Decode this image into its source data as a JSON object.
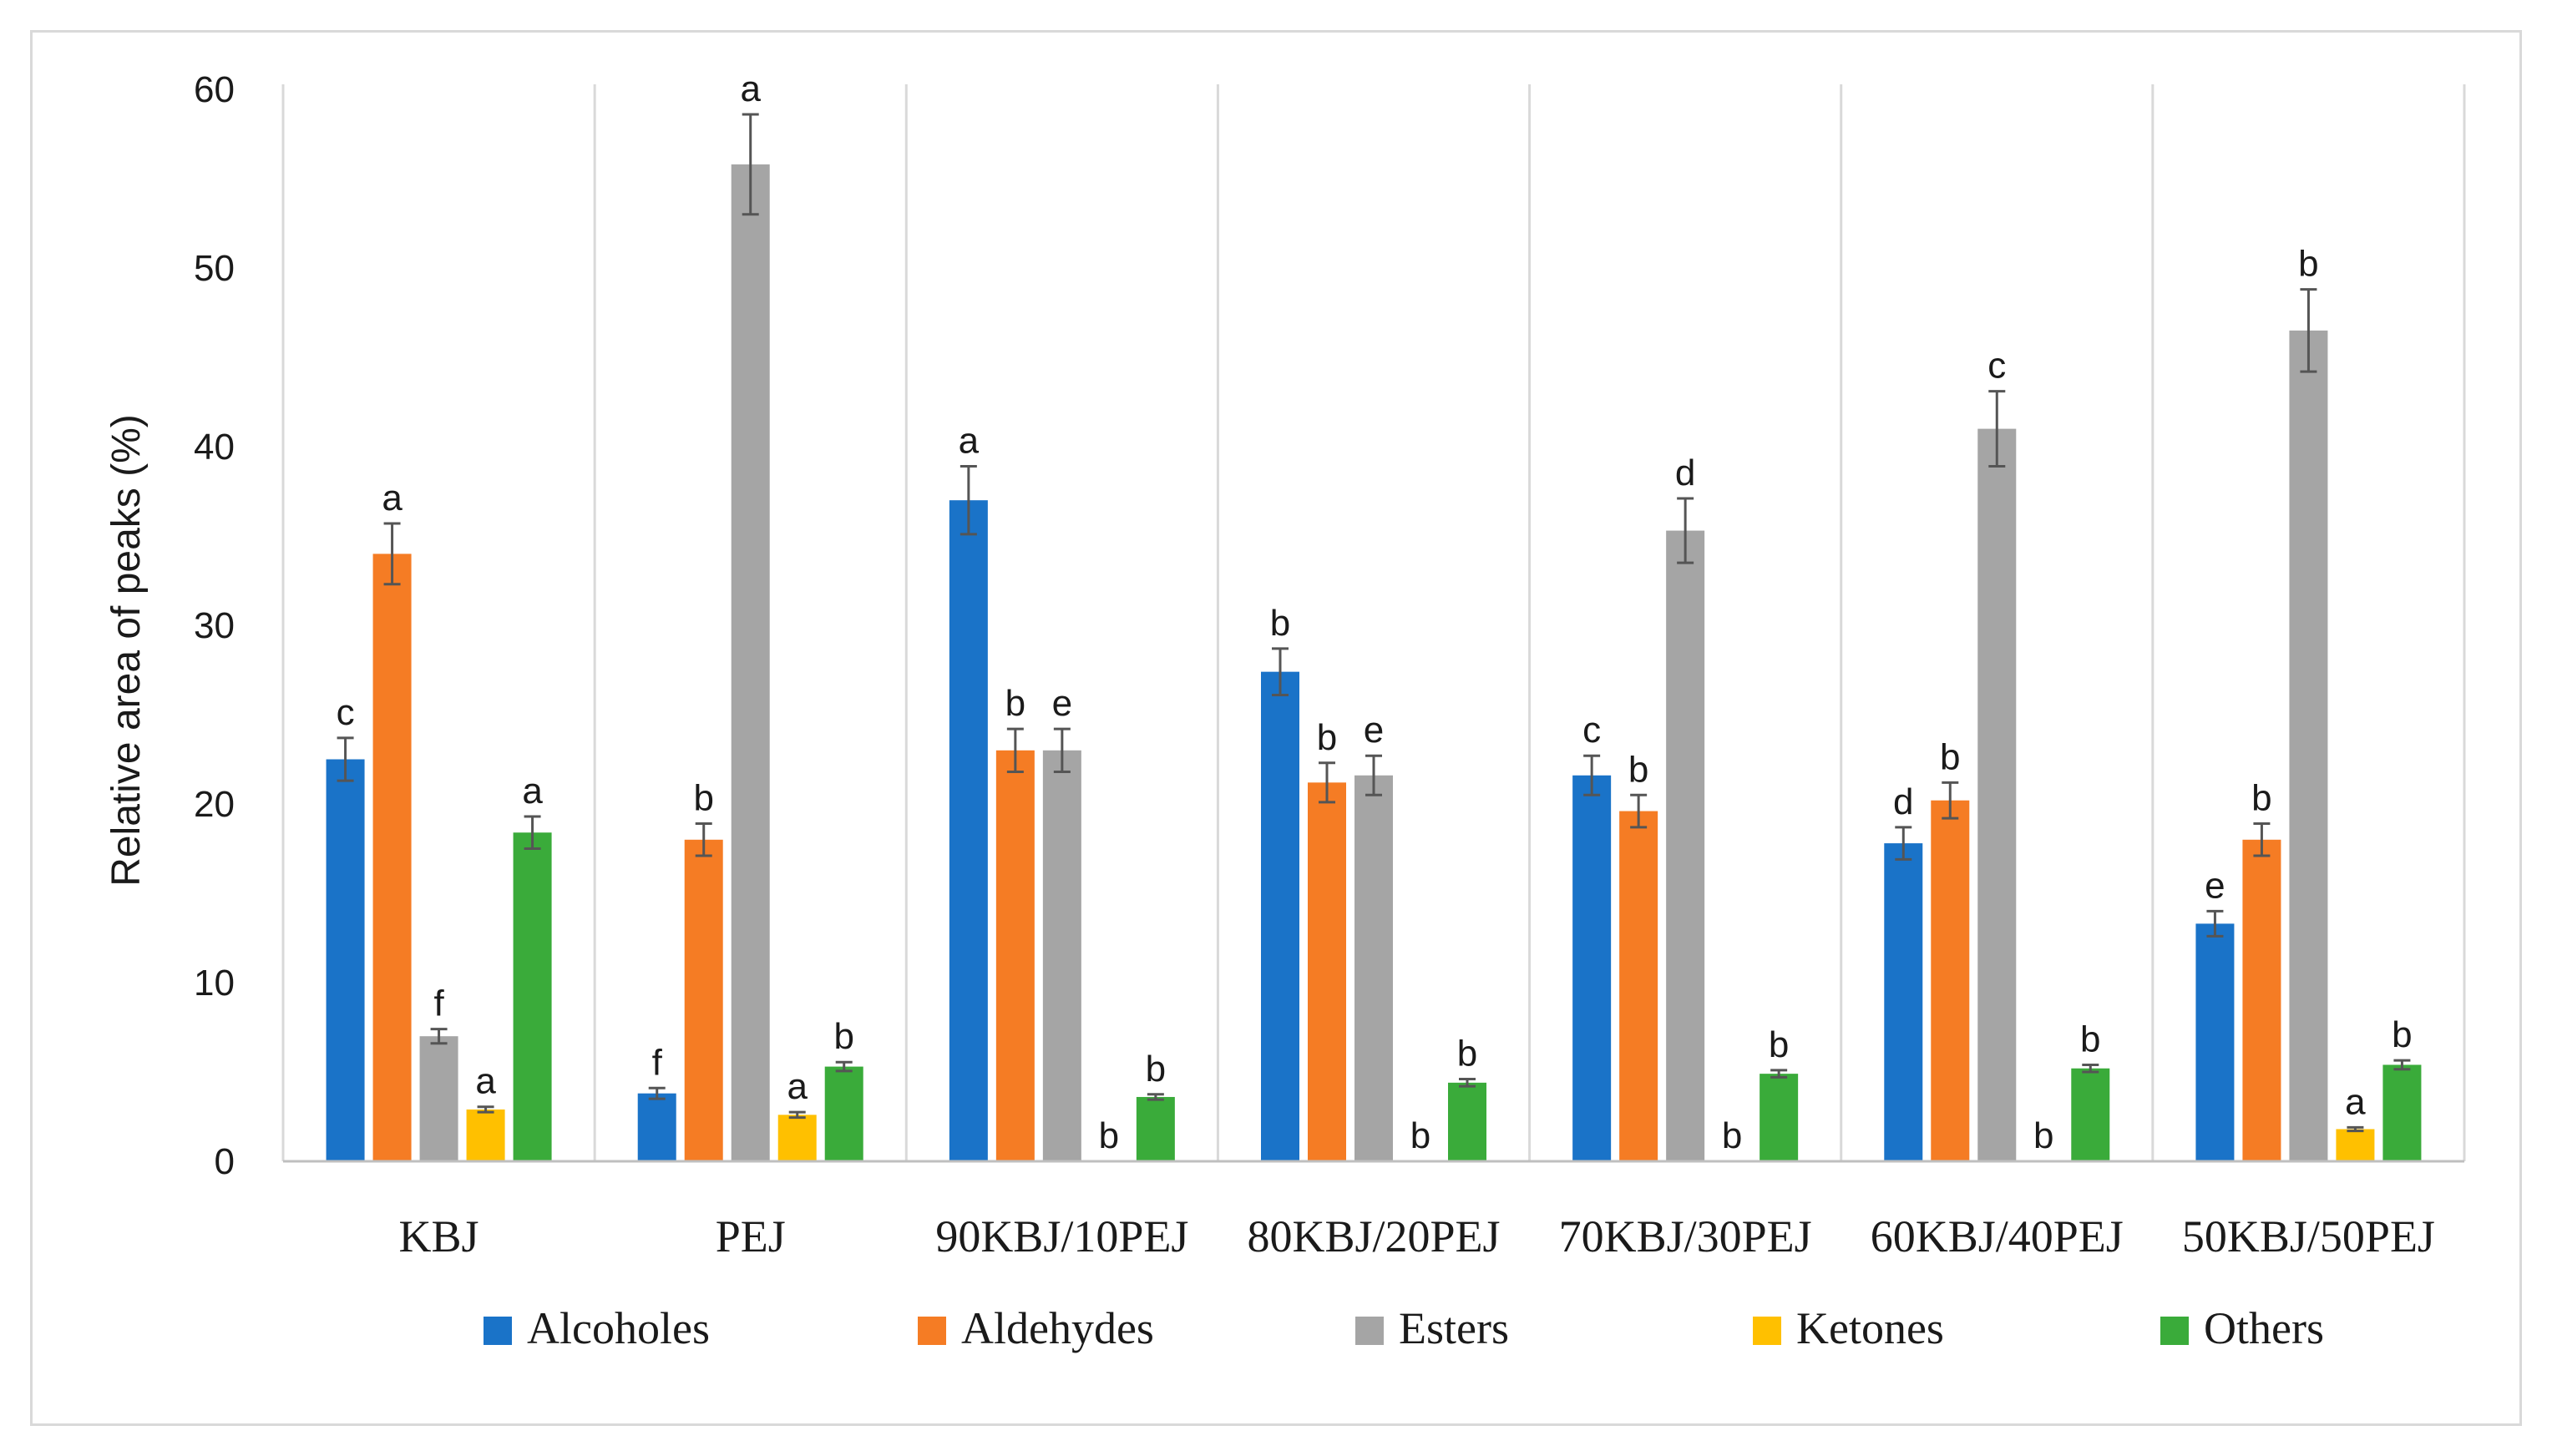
{
  "chart_data": {
    "type": "bar",
    "title": "",
    "xlabel": "",
    "ylabel": "Relative area of peaks (%)",
    "ylim": [
      0,
      60
    ],
    "yticks": [
      "0",
      "10",
      "20",
      "30",
      "40",
      "50",
      "60"
    ],
    "legend_position": "bottom",
    "categories": [
      "KBJ",
      "PEJ",
      "90KBJ/10PEJ",
      "80KBJ/20PEJ",
      "70KBJ/30PEJ",
      "60KBJ/40PEJ",
      "50KBJ/50PEJ"
    ],
    "series": [
      {
        "name": "Alcoholes",
        "color": "#1a73c8",
        "values": [
          22.5,
          3.8,
          37.0,
          27.4,
          21.6,
          17.8,
          13.3
        ],
        "errors": [
          1.2,
          0.3,
          1.9,
          1.3,
          1.1,
          0.9,
          0.7
        ],
        "letters": [
          "c",
          "f",
          "a",
          "b",
          "c",
          "d",
          "e"
        ]
      },
      {
        "name": "Aldehydes",
        "color": "#f57c24",
        "values": [
          34.0,
          18.0,
          23.0,
          21.2,
          19.6,
          20.2,
          18.0
        ],
        "errors": [
          1.7,
          0.9,
          1.2,
          1.1,
          0.9,
          1.0,
          0.9
        ],
        "letters": [
          "a",
          "b",
          "b",
          "b",
          "b",
          "b",
          "b"
        ]
      },
      {
        "name": "Esters",
        "color": "#a5a5a5",
        "values": [
          7.0,
          55.8,
          23.0,
          21.6,
          35.3,
          41.0,
          46.5
        ],
        "errors": [
          0.4,
          2.8,
          1.2,
          1.1,
          1.8,
          2.1,
          2.3
        ],
        "letters": [
          "f",
          "a",
          "e",
          "e",
          "d",
          "c",
          "b"
        ]
      },
      {
        "name": "Ketones",
        "color": "#ffc000",
        "values": [
          2.9,
          2.6,
          0,
          0,
          0,
          0,
          1.8
        ],
        "errors": [
          0.15,
          0.15,
          0,
          0,
          0,
          0,
          0.1
        ],
        "letters": [
          "a",
          "a",
          "b",
          "b",
          "b",
          "b",
          "a"
        ]
      },
      {
        "name": "Others",
        "color": "#3aab3a",
        "values": [
          18.4,
          5.3,
          3.6,
          4.4,
          4.9,
          5.2,
          5.4
        ],
        "errors": [
          0.9,
          0.25,
          0.15,
          0.2,
          0.2,
          0.2,
          0.25
        ],
        "letters": [
          "a",
          "b",
          "b",
          "b",
          "b",
          "b",
          "b"
        ]
      }
    ]
  }
}
